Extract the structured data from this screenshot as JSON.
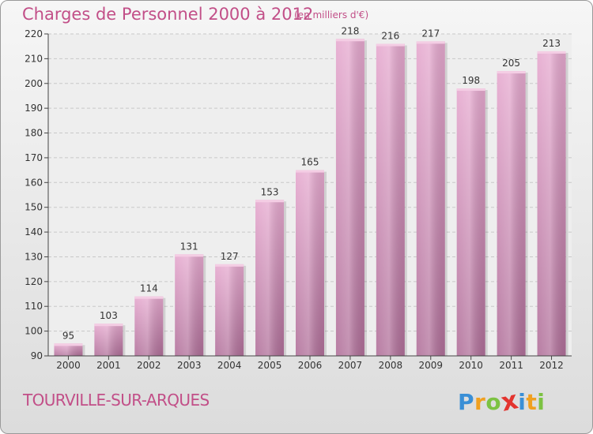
{
  "header": {
    "title": "Charges de Personnel 2000 à 2012",
    "unit": "(en milliers d'€)"
  },
  "footer": {
    "commune": "TOURVILLE-SUR-ARQUES",
    "logo_letters": [
      "P",
      "r",
      "o",
      "x",
      "i",
      "t",
      "i"
    ],
    "logo_colors": [
      "#3a8fd6",
      "#f0a020",
      "#7cc242",
      "#e3342f",
      "#3a8fd6",
      "#f0a020",
      "#7cc242"
    ]
  },
  "colors": {
    "title": "#c24f88",
    "bar_top": "#e6a9cf",
    "bar_bottom": "#b06f99",
    "grid": "#c8c8c8",
    "axis": "#444444",
    "label": "#333333"
  },
  "chart_data": {
    "type": "bar",
    "title": "Charges de Personnel 2000 à 2012",
    "categories": [
      "2000",
      "2001",
      "2002",
      "2003",
      "2004",
      "2005",
      "2006",
      "2007",
      "2008",
      "2009",
      "2010",
      "2011",
      "2012"
    ],
    "values": [
      95,
      103,
      114,
      131,
      127,
      153,
      165,
      218,
      216,
      217,
      198,
      205,
      213
    ],
    "ylim": [
      90,
      220
    ],
    "yticks": [
      90,
      100,
      110,
      120,
      130,
      140,
      150,
      160,
      170,
      180,
      190,
      200,
      210,
      220
    ],
    "grid": true,
    "legend": "none"
  }
}
